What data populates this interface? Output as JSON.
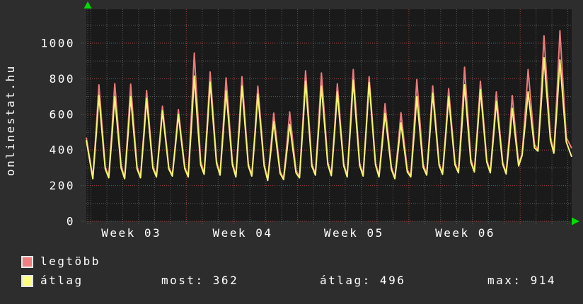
{
  "title": "onlinestat.hu",
  "colors": {
    "background": "#2d2d2d",
    "plot_background": "#1a1a1a",
    "text": "#ffffff",
    "grid_major": "#a04444",
    "grid_minor": "#5a5a5a",
    "arrow": "#00dd00",
    "series_legtobb": "#ee7a7a",
    "series_atlag": "#f5f570",
    "legend_legtobb": "#f08080",
    "legend_atlag": "#ffff80"
  },
  "legend": {
    "items": [
      {
        "label": "legtöbb",
        "series": "legtobb"
      },
      {
        "label": "átlag",
        "series": "atlag"
      }
    ]
  },
  "stats": {
    "most": {
      "label": "most",
      "value": 362,
      "display": "most: 362"
    },
    "atlag": {
      "label": "átlag",
      "value": 496,
      "display": "átlag: 496"
    },
    "max": {
      "label": "max",
      "value": 914,
      "display": "max: 914"
    }
  },
  "chart_data": {
    "type": "line",
    "title": "onlinestat.hu",
    "grid": "dotted, red major / gray minor",
    "legend_position": "bottom-left",
    "series": [
      {
        "name": "legtöbb",
        "color": "#ee7a7a",
        "style": "line2"
      },
      {
        "name": "átlag",
        "color": "#f5f570",
        "style": "line2"
      }
    ],
    "x_axis": {
      "unit": "days",
      "t_start": 0.71,
      "t_end": 31.24,
      "labels": [
        {
          "text": "Week 03",
          "t": 3.5
        },
        {
          "text": "Week 04",
          "t": 10.5
        },
        {
          "text": "Week 05",
          "t": 17.5
        },
        {
          "text": "Week 06",
          "t": 24.5
        }
      ],
      "week_boundaries": [
        7,
        14,
        21,
        28
      ],
      "day_gridline_step": 1
    },
    "y_axis": {
      "ticks": [
        0,
        200,
        400,
        600,
        800,
        1000
      ],
      "minor_ticks": [
        100,
        300,
        500,
        700,
        900,
        1100
      ],
      "range": [
        0,
        1190
      ]
    },
    "start": {
      "t": 0.71,
      "legtobb": 470,
      "atlag": 455
    },
    "end": {
      "t": 31.24,
      "legtobb": 410,
      "atlag": 362
    },
    "days": [
      {
        "day": 1,
        "trough": 245,
        "legtobb": 766,
        "atlag": 706
      },
      {
        "day": 2,
        "trough": 250,
        "legtobb": 773,
        "atlag": 700
      },
      {
        "day": 3,
        "trough": 245,
        "legtobb": 770,
        "atlag": 700
      },
      {
        "day": 4,
        "trough": 250,
        "legtobb": 734,
        "atlag": 690
      },
      {
        "day": 5,
        "trough": 255,
        "legtobb": 646,
        "atlag": 620
      },
      {
        "day": 6,
        "trough": 260,
        "legtobb": 627,
        "atlag": 600
      },
      {
        "day": 7,
        "trough": 255,
        "legtobb": 944,
        "atlag": 815
      },
      {
        "day": 8,
        "trough": 270,
        "legtobb": 838,
        "atlag": 780
      },
      {
        "day": 9,
        "trough": 265,
        "legtobb": 805,
        "atlag": 733
      },
      {
        "day": 10,
        "trough": 255,
        "legtobb": 812,
        "atlag": 759
      },
      {
        "day": 11,
        "trough": 260,
        "legtobb": 759,
        "atlag": 713
      },
      {
        "day": 12,
        "trough": 235,
        "legtobb": 607,
        "atlag": 560
      },
      {
        "day": 13,
        "trough": 240,
        "legtobb": 614,
        "atlag": 545
      },
      {
        "day": 14,
        "trough": 250,
        "legtobb": 845,
        "atlag": 786
      },
      {
        "day": 15,
        "trough": 265,
        "legtobb": 832,
        "atlag": 759
      },
      {
        "day": 16,
        "trough": 262,
        "legtobb": 772,
        "atlag": 726
      },
      {
        "day": 17,
        "trough": 255,
        "legtobb": 852,
        "atlag": 792
      },
      {
        "day": 18,
        "trough": 260,
        "legtobb": 812,
        "atlag": 779
      },
      {
        "day": 19,
        "trough": 255,
        "legtobb": 660,
        "atlag": 605
      },
      {
        "day": 20,
        "trough": 245,
        "legtobb": 610,
        "atlag": 552
      },
      {
        "day": 21,
        "trough": 255,
        "legtobb": 796,
        "atlag": 700
      },
      {
        "day": 22,
        "trough": 265,
        "legtobb": 760,
        "atlag": 719
      },
      {
        "day": 23,
        "trough": 270,
        "legtobb": 745,
        "atlag": 700
      },
      {
        "day": 24,
        "trough": 278,
        "legtobb": 865,
        "atlag": 766
      },
      {
        "day": 25,
        "trough": 283,
        "legtobb": 786,
        "atlag": 739
      },
      {
        "day": 26,
        "trough": 278,
        "legtobb": 726,
        "atlag": 673
      },
      {
        "day": 27,
        "trough": 272,
        "legtobb": 706,
        "atlag": 634
      },
      {
        "day": 28,
        "trough": 375,
        "legtobb": 852,
        "atlag": 726
      },
      {
        "day": 29,
        "trough": 400,
        "legtobb": 1041,
        "atlag": 918
      },
      {
        "day": 30,
        "trough": 388,
        "legtobb": 1070,
        "atlag": 905
      }
    ],
    "waveform": {
      "offsets": [
        0.12,
        0.34,
        0.5,
        0.68,
        0.9
      ],
      "levels": [
        0,
        0.55,
        1,
        0.6,
        0.12
      ],
      "atlag_trough_delta": -6
    }
  }
}
